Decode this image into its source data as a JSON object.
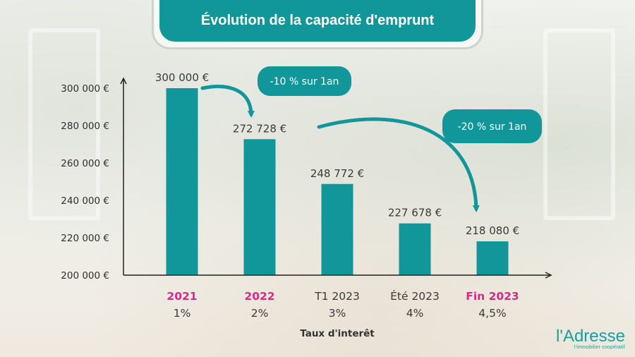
{
  "title": "Évolution de la capacité d'emprunt",
  "logo": {
    "name": "l'Adresse",
    "tagline": "l'immobilier coopératif"
  },
  "colors": {
    "bar": "#11979a",
    "accent": "#d42b8b",
    "badge": "#11979a",
    "text": "#3a3a3a"
  },
  "annotations": [
    {
      "text": "-10 % sur 1an",
      "from_category": "2021",
      "to_category": "2022"
    },
    {
      "text": "-20 % sur 1an",
      "from_category": "2022",
      "to_category": "Fin 2023"
    }
  ],
  "chart_data": {
    "type": "bar",
    "categories": [
      "2021",
      "2022",
      "T1 2023",
      "Été 2023",
      "Fin 2023"
    ],
    "subcategories": [
      "1%",
      "2%",
      "3%",
      "4%",
      "4,5%"
    ],
    "highlighted_categories": [
      "2021",
      "2022",
      "Fin 2023"
    ],
    "values": [
      300000,
      272728,
      248772,
      227678,
      218080
    ],
    "value_labels": [
      "300 000 €",
      "272 728 €",
      "248 772 €",
      "227 678 €",
      "218 080 €"
    ],
    "y_ticks": [
      200000,
      220000,
      240000,
      260000,
      280000,
      300000
    ],
    "y_tick_labels": [
      "200 000 €",
      "220 000 €",
      "240 000 €",
      "260 000 €",
      "280 000 €",
      "300 000 €"
    ],
    "ylim": [
      200000,
      300000
    ],
    "xlabel": "Taux d'interêt",
    "ylabel": "",
    "grid": false,
    "legend": "none"
  }
}
